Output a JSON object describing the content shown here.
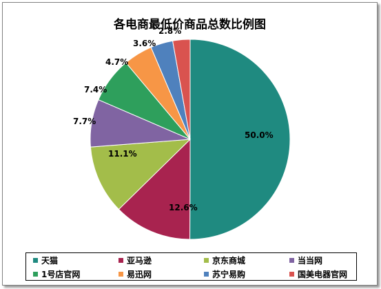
{
  "chart_data": {
    "type": "pie",
    "title": "各电商最低价商品总数比例图",
    "categories": [
      "天猫",
      "亚马逊",
      "京东商城",
      "当当网",
      "1号店官网",
      "易迅网",
      "苏宁易购",
      "国美电器官网"
    ],
    "values": [
      50.0,
      12.6,
      11.1,
      7.7,
      7.4,
      4.7,
      3.6,
      2.8
    ],
    "data_labels": [
      "50.0%",
      "12.6%",
      "11.1%",
      "7.7%",
      "7.4%",
      "4.7%",
      "3.6%",
      "2.8%"
    ],
    "colors": [
      "#1f8a80",
      "#a8234f",
      "#a3bd4a",
      "#8064a2",
      "#2e9f5c",
      "#f79646",
      "#4f81bd",
      "#d9534f"
    ],
    "legend_position": "bottom",
    "start_angle": "12 o'clock",
    "direction": "clockwise"
  }
}
